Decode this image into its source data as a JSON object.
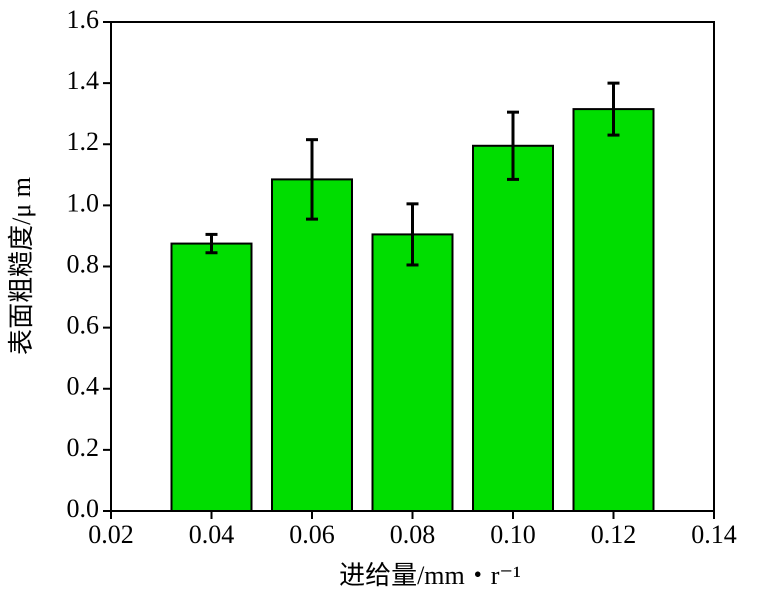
{
  "chart_data": {
    "type": "bar",
    "x_label": "进给量/mm・r⁻¹",
    "y_label": "表面粗糙度/μ m",
    "x": [
      0.04,
      0.06,
      0.08,
      0.1,
      0.12
    ],
    "values": [
      0.875,
      1.085,
      0.905,
      1.195,
      1.315
    ],
    "errors": [
      0.03,
      0.13,
      0.1,
      0.11,
      0.085
    ],
    "color": "#00dd00",
    "xlim": [
      0.02,
      0.14
    ],
    "xticks": [
      0.02,
      0.04,
      0.06,
      0.08,
      {
        "value": 0.1,
        "label": "0.10"
      },
      0.12,
      0.14
    ],
    "ylim": [
      0,
      1.6
    ],
    "yticks": [
      {
        "value": 0,
        "label": "0.0"
      },
      0.2,
      0.4,
      0.6,
      0.8,
      {
        "value": 1,
        "label": "1.0"
      },
      1.2,
      1.4,
      1.6
    ]
  }
}
